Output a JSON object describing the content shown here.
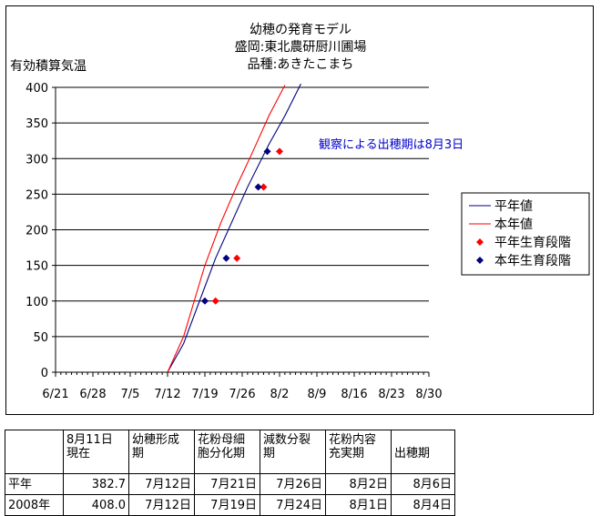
{
  "chart_data": {
    "type": "line",
    "title_lines": [
      "幼穂の発育モデル",
      "盛岡:東北農研厨川圃場",
      "品種:あきたこまち"
    ],
    "ylabel": "有効積算気温",
    "ylim": [
      0,
      400
    ],
    "y_ticks": [
      "0",
      "50",
      "100",
      "150",
      "200",
      "250",
      "300",
      "350",
      "400"
    ],
    "x_ticks": [
      "6/21",
      "6/28",
      "7/5",
      "7/12",
      "7/19",
      "7/26",
      "8/2",
      "8/9",
      "8/16",
      "8/23",
      "8/30"
    ],
    "x_range_days": [
      0,
      70
    ],
    "annotation": "観察による出穂期は8月3日",
    "grid": "horizontal",
    "legend_position": "right",
    "series": [
      {
        "name": "平年値",
        "kind": "line",
        "color": "#000080",
        "points": [
          [
            21,
            0
          ],
          [
            24,
            40
          ],
          [
            27,
            100
          ],
          [
            30,
            160
          ],
          [
            33,
            210
          ],
          [
            36,
            260
          ],
          [
            40,
            320
          ],
          [
            43,
            360
          ],
          [
            46,
            405
          ]
        ]
      },
      {
        "name": "本年値",
        "kind": "line",
        "color": "#ff0000",
        "points": [
          [
            21,
            0
          ],
          [
            24,
            50
          ],
          [
            26,
            100
          ],
          [
            28,
            150
          ],
          [
            31,
            210
          ],
          [
            34,
            262
          ],
          [
            37,
            310
          ],
          [
            40,
            360
          ],
          [
            43,
            403
          ]
        ]
      },
      {
        "name": "平年生育段階",
        "kind": "points",
        "color": "#ff0000",
        "marker": "diamond",
        "points": [
          [
            30,
            100
          ],
          [
            34,
            160
          ],
          [
            39,
            260
          ],
          [
            42,
            310
          ]
        ]
      },
      {
        "name": "本年生育段階",
        "kind": "points",
        "color": "#000080",
        "marker": "diamond",
        "points": [
          [
            28,
            100
          ],
          [
            32,
            160
          ],
          [
            38,
            260
          ],
          [
            39.7,
            310
          ]
        ]
      }
    ]
  },
  "table": {
    "headers": [
      "",
      "8月11日\n現在",
      "幼穂形成\n期",
      "花粉母細\n胞分化期",
      "減数分裂\n期",
      "花粉内容\n充実期",
      "出穂期"
    ],
    "rows": [
      [
        "平年",
        "382.7",
        "7月12日",
        "7月21日",
        "7月26日",
        "8月2日",
        "8月6日"
      ],
      [
        "2008年",
        "408.0",
        "7月12日",
        "7月19日",
        "7月24日",
        "8月1日",
        "8月4日"
      ]
    ]
  }
}
